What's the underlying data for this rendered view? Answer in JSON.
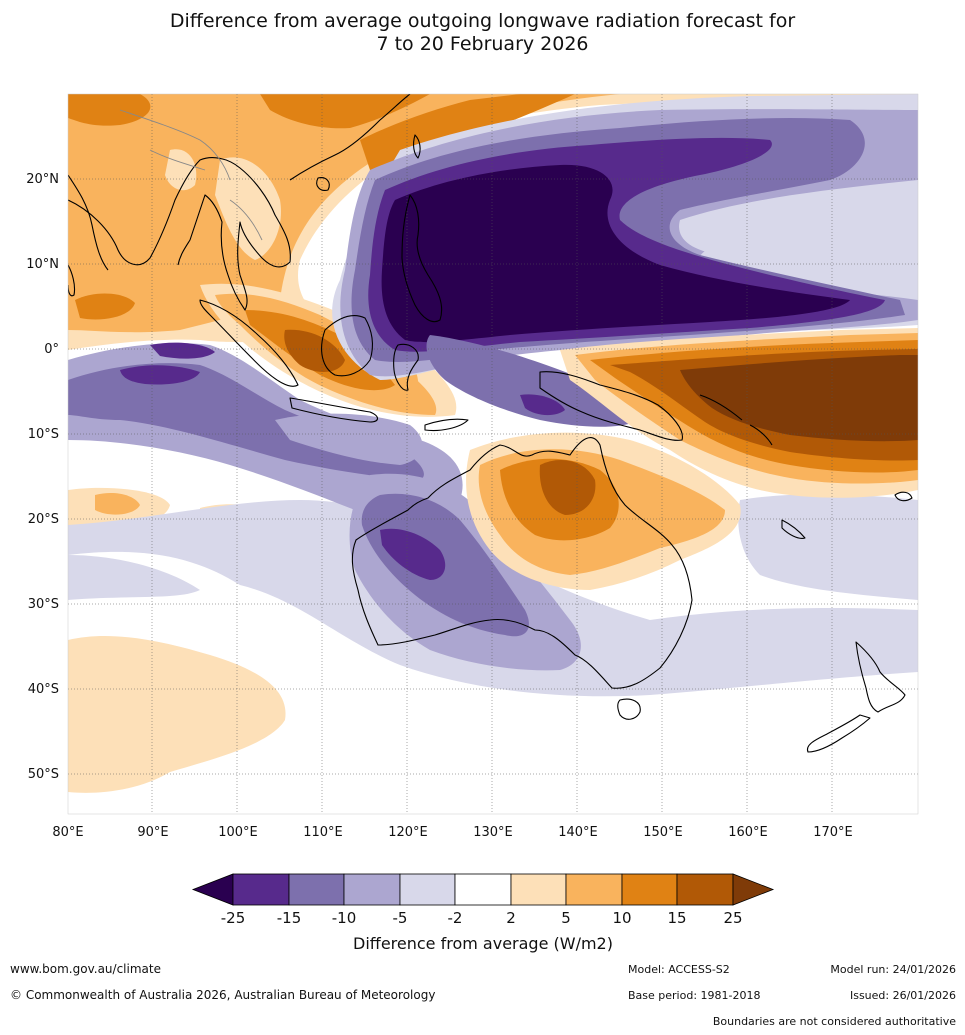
{
  "title": {
    "line1": "Difference from average outgoing longwave radiation forecast for",
    "line2": "7 to 20 February 2026"
  },
  "axes": {
    "lat_labels": [
      "20°N",
      "10°N",
      "0°",
      "10°S",
      "20°S",
      "30°S",
      "40°S",
      "50°S"
    ],
    "lon_labels": [
      "80°E",
      "90°E",
      "100°E",
      "110°E",
      "120°E",
      "130°E",
      "140°E",
      "150°E",
      "160°E",
      "170°E"
    ]
  },
  "colorbar": {
    "title": "Difference from average (W/m2)",
    "ticks": [
      "-25",
      "-15",
      "-10",
      "-5",
      "-2",
      "2",
      "5",
      "10",
      "15",
      "25"
    ],
    "colors": [
      "#2a0050",
      "#572a8c",
      "#7d70ad",
      "#aca6d0",
      "#d8d8ea",
      "#ffffff",
      "#fde0b8",
      "#f9b35d",
      "#e08214",
      "#b15906",
      "#7f3b08"
    ]
  },
  "footer": {
    "website": "www.bom.gov.au/climate",
    "copyright": "© Commonwealth of Australia 2026, Australian Bureau of Meteorology",
    "model": "Model: ACCESS-S2",
    "base_period": "Base period: 1981-2018",
    "model_run": "Model run: 24/01/2026",
    "issued": "Issued: 26/01/2026",
    "disclaimer": "Boundaries are not considered authoritative"
  }
}
